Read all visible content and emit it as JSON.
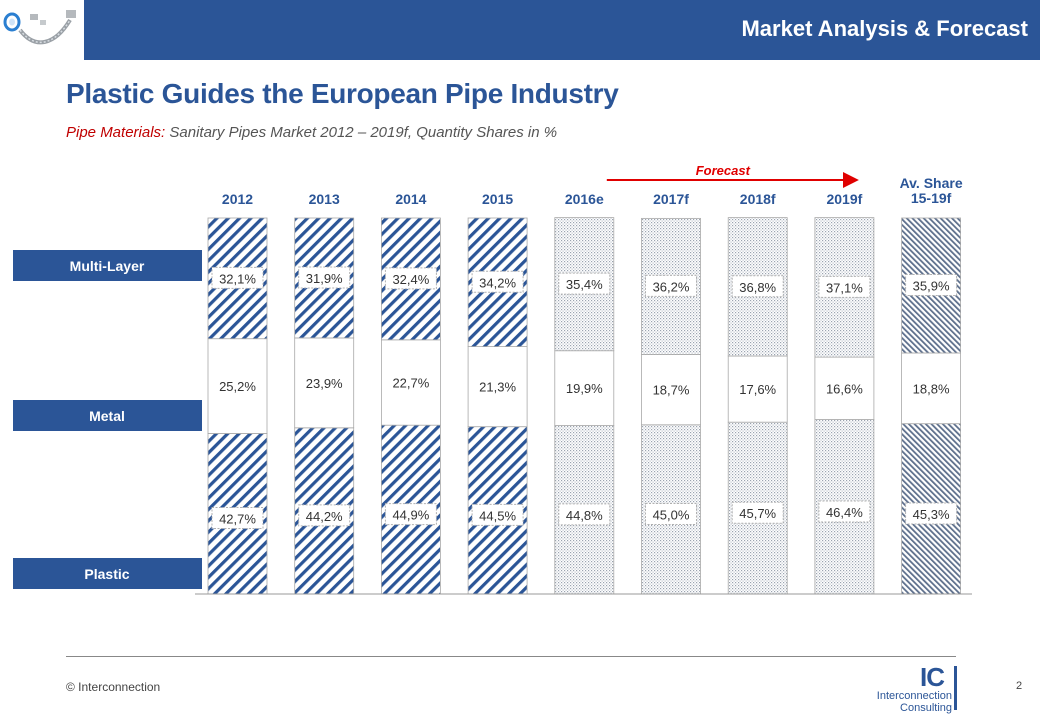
{
  "header": {
    "title": "Market Analysis & Forecast"
  },
  "page": {
    "title": "Plastic Guides the European Pipe Industry",
    "subtitle_lead": "Pipe Materials:",
    "subtitle_rest": " Sanitary Pipes Market 2012 – 2019f, Quantity Shares in %"
  },
  "footer": {
    "copyright": "© Interconnection",
    "page_number": "2"
  },
  "logo": {
    "mark": "IC",
    "name": "Interconnection",
    "sub": "Consulting"
  },
  "colors": {
    "brand_blue": "#2b5597",
    "forecast_red": "#e00000",
    "label_border": "#b0b0b0"
  },
  "chart_data": {
    "type": "bar",
    "stacked": true,
    "percent": true,
    "categories": [
      "2012",
      "2013",
      "2014",
      "2015",
      "2016e",
      "2017f",
      "2018f",
      "2019f",
      "Av. Share 15-19f"
    ],
    "category_lines": [
      [
        "2012"
      ],
      [
        "2013"
      ],
      [
        "2014"
      ],
      [
        "2015"
      ],
      [
        "2016e"
      ],
      [
        "2017f"
      ],
      [
        "2018f"
      ],
      [
        "2019f"
      ],
      [
        "Av. Share",
        "15-19f"
      ]
    ],
    "series": [
      {
        "name": "Plastic",
        "values": [
          42.7,
          44.2,
          44.9,
          44.5,
          44.8,
          45.0,
          45.7,
          46.4,
          45.3
        ],
        "labels": [
          "42,7%",
          "44,2%",
          "44,9%",
          "44,5%",
          "44,8%",
          "45,0%",
          "45,7%",
          "46,4%",
          "45,3%"
        ]
      },
      {
        "name": "Metal",
        "values": [
          25.2,
          23.9,
          22.7,
          21.3,
          19.9,
          18.7,
          17.6,
          16.6,
          18.8
        ],
        "labels": [
          "25,2%",
          "23,9%",
          "22,7%",
          "21,3%",
          "19,9%",
          "18,7%",
          "17,6%",
          "16,6%",
          "18,8%"
        ]
      },
      {
        "name": "Multi-Layer",
        "values": [
          32.1,
          31.9,
          32.4,
          34.2,
          35.4,
          36.2,
          36.8,
          37.1,
          35.9
        ],
        "labels": [
          "32,1%",
          "31,9%",
          "32,4%",
          "34,2%",
          "35,4%",
          "36,2%",
          "36,8%",
          "37,1%",
          "35,9%"
        ]
      }
    ],
    "forecast_label": "Forecast",
    "legend_placement": "left",
    "grid": false,
    "ylim": [
      0,
      100
    ]
  }
}
